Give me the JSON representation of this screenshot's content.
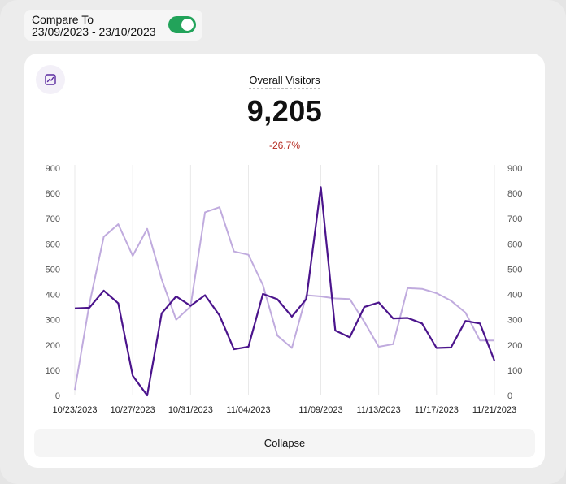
{
  "compare": {
    "label": "Compare To",
    "range": "23/09/2023 - 23/10/2023",
    "enabled": true,
    "toggle_color": "#22a35a"
  },
  "card": {
    "icon": "line-chart-icon",
    "title": "Overall Visitors",
    "value": "9,205",
    "change": "-26.7%",
    "change_color": "#b4281e"
  },
  "collapse_label": "Collapse",
  "chart_data": {
    "type": "line",
    "y_ticks": [
      "900",
      "800",
      "700",
      "600",
      "500",
      "400",
      "300",
      "200",
      "100",
      "0"
    ],
    "ylim": [
      0,
      900
    ],
    "grid": "vertical",
    "x_tick_labels": [
      "10/23/2023",
      "10/27/2023",
      "10/31/2023",
      "11/04/2023",
      "11/09/2023",
      "11/13/2023",
      "11/17/2023",
      "11/21/2023"
    ],
    "x_tick_index": [
      0,
      4,
      8,
      12,
      17,
      21,
      25,
      29
    ],
    "series": [
      {
        "color": "#4b148c",
        "values": [
          345,
          347,
          415,
          365,
          78,
          0,
          325,
          392,
          355,
          397,
          317,
          183,
          193,
          402,
          381,
          312,
          382,
          825,
          257,
          230,
          350,
          368,
          305,
          307,
          285,
          188,
          190,
          295,
          285,
          138
        ]
      },
      {
        "color": "#c0abde",
        "values": [
          22,
          360,
          628,
          678,
          553,
          660,
          460,
          300,
          352,
          725,
          745,
          570,
          557,
          437,
          237,
          188,
          397,
          392,
          384,
          382,
          292,
          193,
          203,
          425,
          422,
          405,
          375,
          328,
          218,
          218
        ]
      }
    ]
  }
}
